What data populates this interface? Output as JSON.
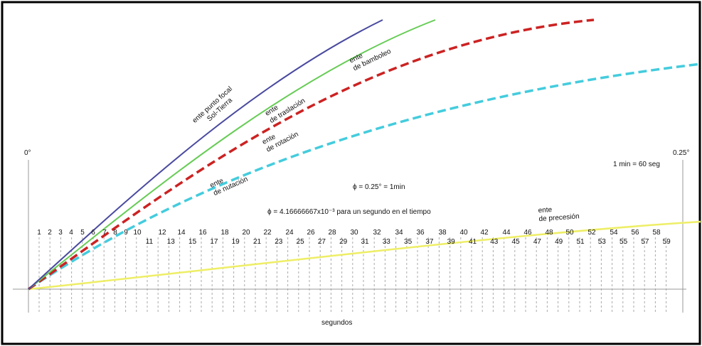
{
  "labels": {
    "zero_deg": "0°",
    "end_deg": "0.25°",
    "minute_note": "1 min = 60 seg",
    "phi_equation": "ϕ = 0.25° = 1min",
    "phi_second_equation": "ϕ = 4.16666667x10⁻³ para un segundo en el tiempo",
    "x_axis": "segundos"
  },
  "curve_labels": {
    "focal_line1": "ente punto focal",
    "focal_line2": "Sol-Tierra",
    "traslacion_line1": "ente",
    "traslacion_line2": "de traslación",
    "bamboleo_line1": "ente",
    "bamboleo_line2": "de bamboleo",
    "rotacion_red_line1": "ente",
    "rotacion_red_line2": "de rotación",
    "nutacion_line1": "ente",
    "nutacion_line2": "de nutación",
    "precesion_line1": "ente",
    "precesion_line2": "de precesión"
  },
  "seconds_upper": [
    "1",
    "2",
    "3",
    "4",
    "5",
    "6",
    "7",
    "8",
    "9",
    "10",
    "12",
    "14",
    "16",
    "18",
    "20",
    "22",
    "24",
    "26",
    "28",
    "30",
    "32",
    "34",
    "36",
    "38",
    "40",
    "42",
    "44",
    "46",
    "48",
    "50",
    "52",
    "54",
    "56",
    "58"
  ],
  "seconds_lower": [
    "11",
    "13",
    "15",
    "17",
    "19",
    "21",
    "23",
    "25",
    "27",
    "29",
    "31",
    "33",
    "35",
    "37",
    "39",
    "41",
    "43",
    "45",
    "47",
    "49",
    "51",
    "53",
    "55",
    "57",
    "59"
  ],
  "colors": {
    "focal": "#4a4aa0",
    "traslacion": "#66cc55",
    "rotacion": "#cc2222",
    "nutacion": "#44ccdd",
    "precesion": "#eeee66",
    "guides": "#999999",
    "frame": "#000000"
  }
}
